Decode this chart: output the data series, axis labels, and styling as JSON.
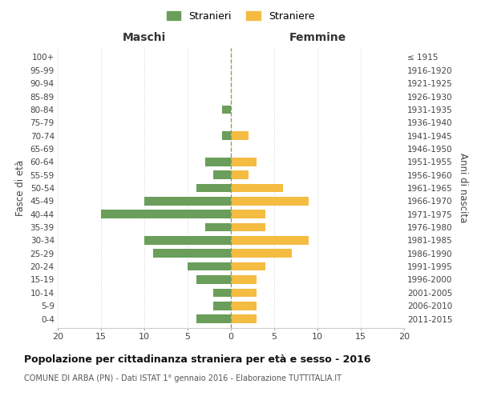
{
  "age_groups": [
    "0-4",
    "5-9",
    "10-14",
    "15-19",
    "20-24",
    "25-29",
    "30-34",
    "35-39",
    "40-44",
    "45-49",
    "50-54",
    "55-59",
    "60-64",
    "65-69",
    "70-74",
    "75-79",
    "80-84",
    "85-89",
    "90-94",
    "95-99",
    "100+"
  ],
  "birth_years": [
    "2011-2015",
    "2006-2010",
    "2001-2005",
    "1996-2000",
    "1991-1995",
    "1986-1990",
    "1981-1985",
    "1976-1980",
    "1971-1975",
    "1966-1970",
    "1961-1965",
    "1956-1960",
    "1951-1955",
    "1946-1950",
    "1941-1945",
    "1936-1940",
    "1931-1935",
    "1926-1930",
    "1921-1925",
    "1916-1920",
    "≤ 1915"
  ],
  "maschi": [
    4,
    2,
    2,
    4,
    5,
    9,
    10,
    3,
    15,
    10,
    4,
    2,
    3,
    0,
    1,
    0,
    1,
    0,
    0,
    0,
    0
  ],
  "femmine": [
    3,
    3,
    3,
    3,
    4,
    7,
    9,
    4,
    4,
    9,
    6,
    2,
    3,
    0,
    2,
    0,
    0,
    0,
    0,
    0,
    0
  ],
  "color_maschi": "#6a9e5a",
  "color_femmine": "#f5bc42",
  "title": "Popolazione per cittadinanza straniera per età e sesso - 2016",
  "subtitle": "COMUNE DI ARBA (PN) - Dati ISTAT 1° gennaio 2016 - Elaborazione TUTTITALIA.IT",
  "xlabel_left": "Maschi",
  "xlabel_right": "Femmine",
  "ylabel_left": "Fasce di età",
  "ylabel_right": "Anni di nascita",
  "legend_maschi": "Stranieri",
  "legend_femmine": "Straniere",
  "xlim": 20,
  "background_color": "#ffffff",
  "grid_color": "#cccccc"
}
